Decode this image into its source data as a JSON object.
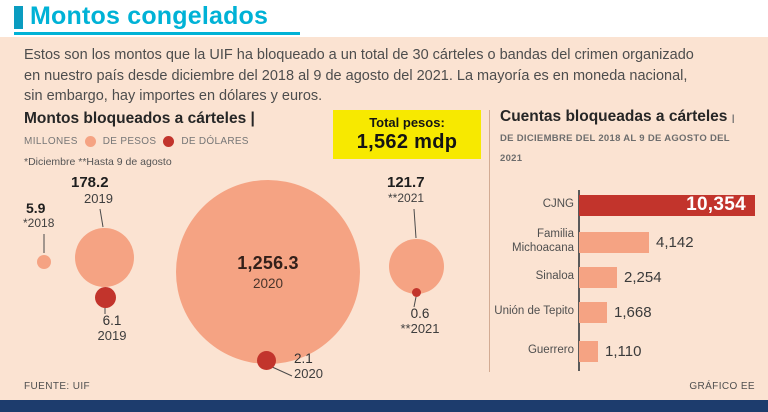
{
  "page": {
    "title": "Montos congelados",
    "intro": "Estos son los montos que la UIF ha bloqueado a un total de 30 cárteles o bandas del crimen organizado en nuestro país desde diciembre del 2018 al 9 de agosto del 2021. La mayoría es en moneda nacional, sin embargo, hay importes en dólares y euros.",
    "source": "FUENTE: UIF",
    "credit": "GRÁFICO EE"
  },
  "colors": {
    "accent_cyan": "#00b2d6",
    "peso_color": "#f5a383",
    "dolar_color": "#c2342c",
    "total_box_yellow": "#f7e900",
    "panel_background": "#fbe3d2",
    "footer_bar_navy": "#1d3c6d"
  },
  "chart_data": [
    {
      "type": "bubble",
      "title": "Montos bloqueados a cárteles |",
      "unit_label": "MILLONES",
      "legend": [
        {
          "name": "DE PESOS",
          "color": "#f5a383"
        },
        {
          "name": "DE DÓLARES",
          "color": "#c2342c"
        }
      ],
      "footnote": "*Diciembre **Hasta 9 de agosto",
      "series": [
        {
          "name": "pesos",
          "points": [
            {
              "x": "*2018",
              "y": 5.9,
              "label": "5.9"
            },
            {
              "x": "2019",
              "y": 178.2,
              "label": "178.2"
            },
            {
              "x": "2020",
              "y": 1256.3,
              "label": "1,256.3"
            },
            {
              "x": "**2021",
              "y": 121.7,
              "label": "121.7"
            }
          ]
        },
        {
          "name": "dolares",
          "points": [
            {
              "x": "2019",
              "y": 6.1,
              "label": "6.1"
            },
            {
              "x": "2020",
              "y": 2.1,
              "label": "2.1"
            },
            {
              "x": "**2021",
              "y": 0.6,
              "label": "0.6"
            }
          ]
        }
      ],
      "total": {
        "label": "Total pesos:",
        "value": "1,562 mdp"
      }
    },
    {
      "type": "bar",
      "orientation": "horizontal",
      "title": "Cuentas bloqueadas a cárteles",
      "subtitle": "| DE DICIEMBRE DEL 2018 AL 9 DE AGOSTO DEL 2021",
      "categories": [
        "CJNG",
        "Familia Michoacana",
        "Sinaloa",
        "Unión de Tepito",
        "Guerrero"
      ],
      "values": [
        10354,
        4142,
        2254,
        1668,
        1110
      ],
      "value_labels": [
        "10,354",
        "4,142",
        "2,254",
        "1,668",
        "1,110"
      ],
      "max_value": 10354
    }
  ]
}
